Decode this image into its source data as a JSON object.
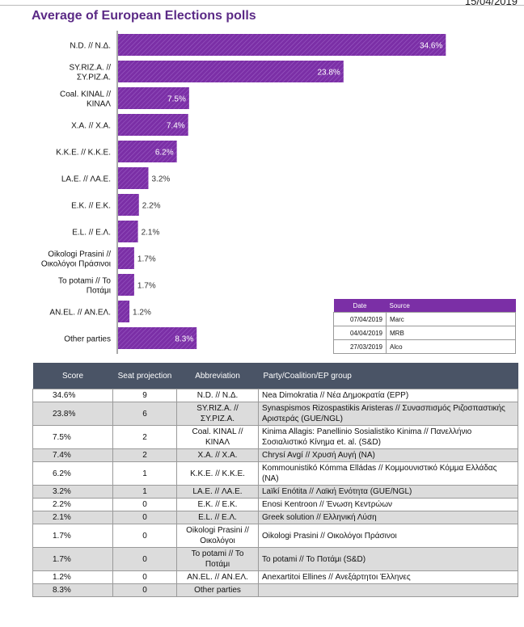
{
  "header": {
    "date": "15/04/2019",
    "title": "Average of European Elections polls"
  },
  "chart_data": {
    "type": "bar",
    "orientation": "horizontal",
    "title": "Average of European Elections polls",
    "categories": [
      "N.D. // Ν.Δ.",
      "SY.RIZ.A. // ΣΥ.ΡΙΖ.Α.",
      "Coal. KINAL // ΚΙΝΑΛ",
      "X.A. // Χ.Α.",
      "K.K.E. // Κ.Κ.Ε.",
      "LA.E. // ΛΑ.Ε.",
      "E.K. // Ε.Κ.",
      "E.L. // Ε.Λ.",
      "Oikologi Prasini // Οικολόγοι Πράσινοι",
      "To potami // Το Ποτάμι",
      "AN.EL. // ΑΝ.ΕΛ.",
      "Other parties"
    ],
    "values": [
      34.6,
      23.8,
      7.5,
      7.4,
      6.2,
      3.2,
      2.2,
      2.1,
      1.7,
      1.7,
      1.2,
      8.3
    ],
    "value_labels": [
      "34.6%",
      "23.8%",
      "7.5%",
      "7.4%",
      "6.2%",
      "3.2%",
      "2.2%",
      "2.1%",
      "1.7%",
      "1.7%",
      "1.2%",
      "8.3%"
    ],
    "label_lines": [
      [
        "N.D. // Ν.Δ."
      ],
      [
        "SY.RIZ.A. //",
        "ΣΥ.ΡΙΖ.Α."
      ],
      [
        "Coal. KINAL //",
        "ΚΙΝΑΛ"
      ],
      [
        "X.A. // Χ.Α."
      ],
      [
        "K.K.E. // Κ.Κ.Ε."
      ],
      [
        "LA.E. // ΛΑ.Ε."
      ],
      [
        "E.K. // Ε.Κ."
      ],
      [
        "E.L. // Ε.Λ."
      ],
      [
        "Oikologi Prasini //",
        "Οικολόγοι Πράσινοι"
      ],
      [
        "To potami // Το",
        "Ποτάμι"
      ],
      [
        "AN.EL. // ΑΝ.ΕΛ."
      ],
      [
        "Other parties"
      ]
    ],
    "xlim": [
      0,
      35
    ],
    "grid": false,
    "bar_color": "#7b2fa6"
  },
  "sources": {
    "headers": [
      "Date",
      "Source"
    ],
    "rows": [
      [
        "07/04/2019",
        "Marc"
      ],
      [
        "04/04/2019",
        "MRB"
      ],
      [
        "27/03/2019",
        "Alco"
      ]
    ]
  },
  "table": {
    "headers": [
      "Score",
      "Seat projection",
      "Abbreviation",
      "Party/Coalition/EP group"
    ],
    "rows": [
      [
        "34.6%",
        "9",
        "N.D. // Ν.Δ.",
        "Nea Dimokratia // Νέα Δημοκρατία (EPP)"
      ],
      [
        "23.8%",
        "6",
        "SY.RIZ.A. // ΣΥ.ΡΙΖ.Α.",
        "Synaspismos Rizospastikis Aristeras // Συνασπισμός Ριζοσπαστικής Αριστεράς (GUE/NGL)"
      ],
      [
        "7.5%",
        "2",
        "Coal. KINAL // ΚΙΝΑΛ",
        "Kinima Allagis: Panellinio Sosialistiko Kinima // Πανελλήνιο Σοσιαλιστικό Κίνημα et. al. (S&D)"
      ],
      [
        "7.4%",
        "2",
        "X.A. // Χ.Α.",
        "Chrysí Avgí // Χρυσή Αυγή (NA)"
      ],
      [
        "6.2%",
        "1",
        "K.K.E. // Κ.Κ.Ε.",
        "Kommounistikó Kómma Elládas // Κομμουνιστικό Κόμμα Ελλάδας (NA)"
      ],
      [
        "3.2%",
        "1",
        "LA.E. // ΛΑ.Ε.",
        "Laïkí Enótita // Λαϊκή Ενότητα (GUE/NGL)"
      ],
      [
        "2.2%",
        "0",
        "E.K. // Ε.Κ.",
        "Enosi Kentroon // Ένωση Κεντρώων"
      ],
      [
        "2.1%",
        "0",
        "E.L. // Ε.Λ.",
        "Greek solution // Ελληνική Λύση"
      ],
      [
        "1.7%",
        "0",
        "Oikologi Prasini // Οικολόγοι",
        "Oikologi Prasini // Οικολόγοι Πράσινοι"
      ],
      [
        "1.7%",
        "0",
        "To potami // To Ποτάμι",
        "To potami // Το Ποτάμι (S&D)"
      ],
      [
        "1.2%",
        "0",
        "AN.EL. // ΑΝ.ΕΛ.",
        "Anexartitoi Ellines // Ανεξάρτητοι Έλληνες"
      ],
      [
        "8.3%",
        "0",
        "Other parties",
        ""
      ]
    ]
  }
}
